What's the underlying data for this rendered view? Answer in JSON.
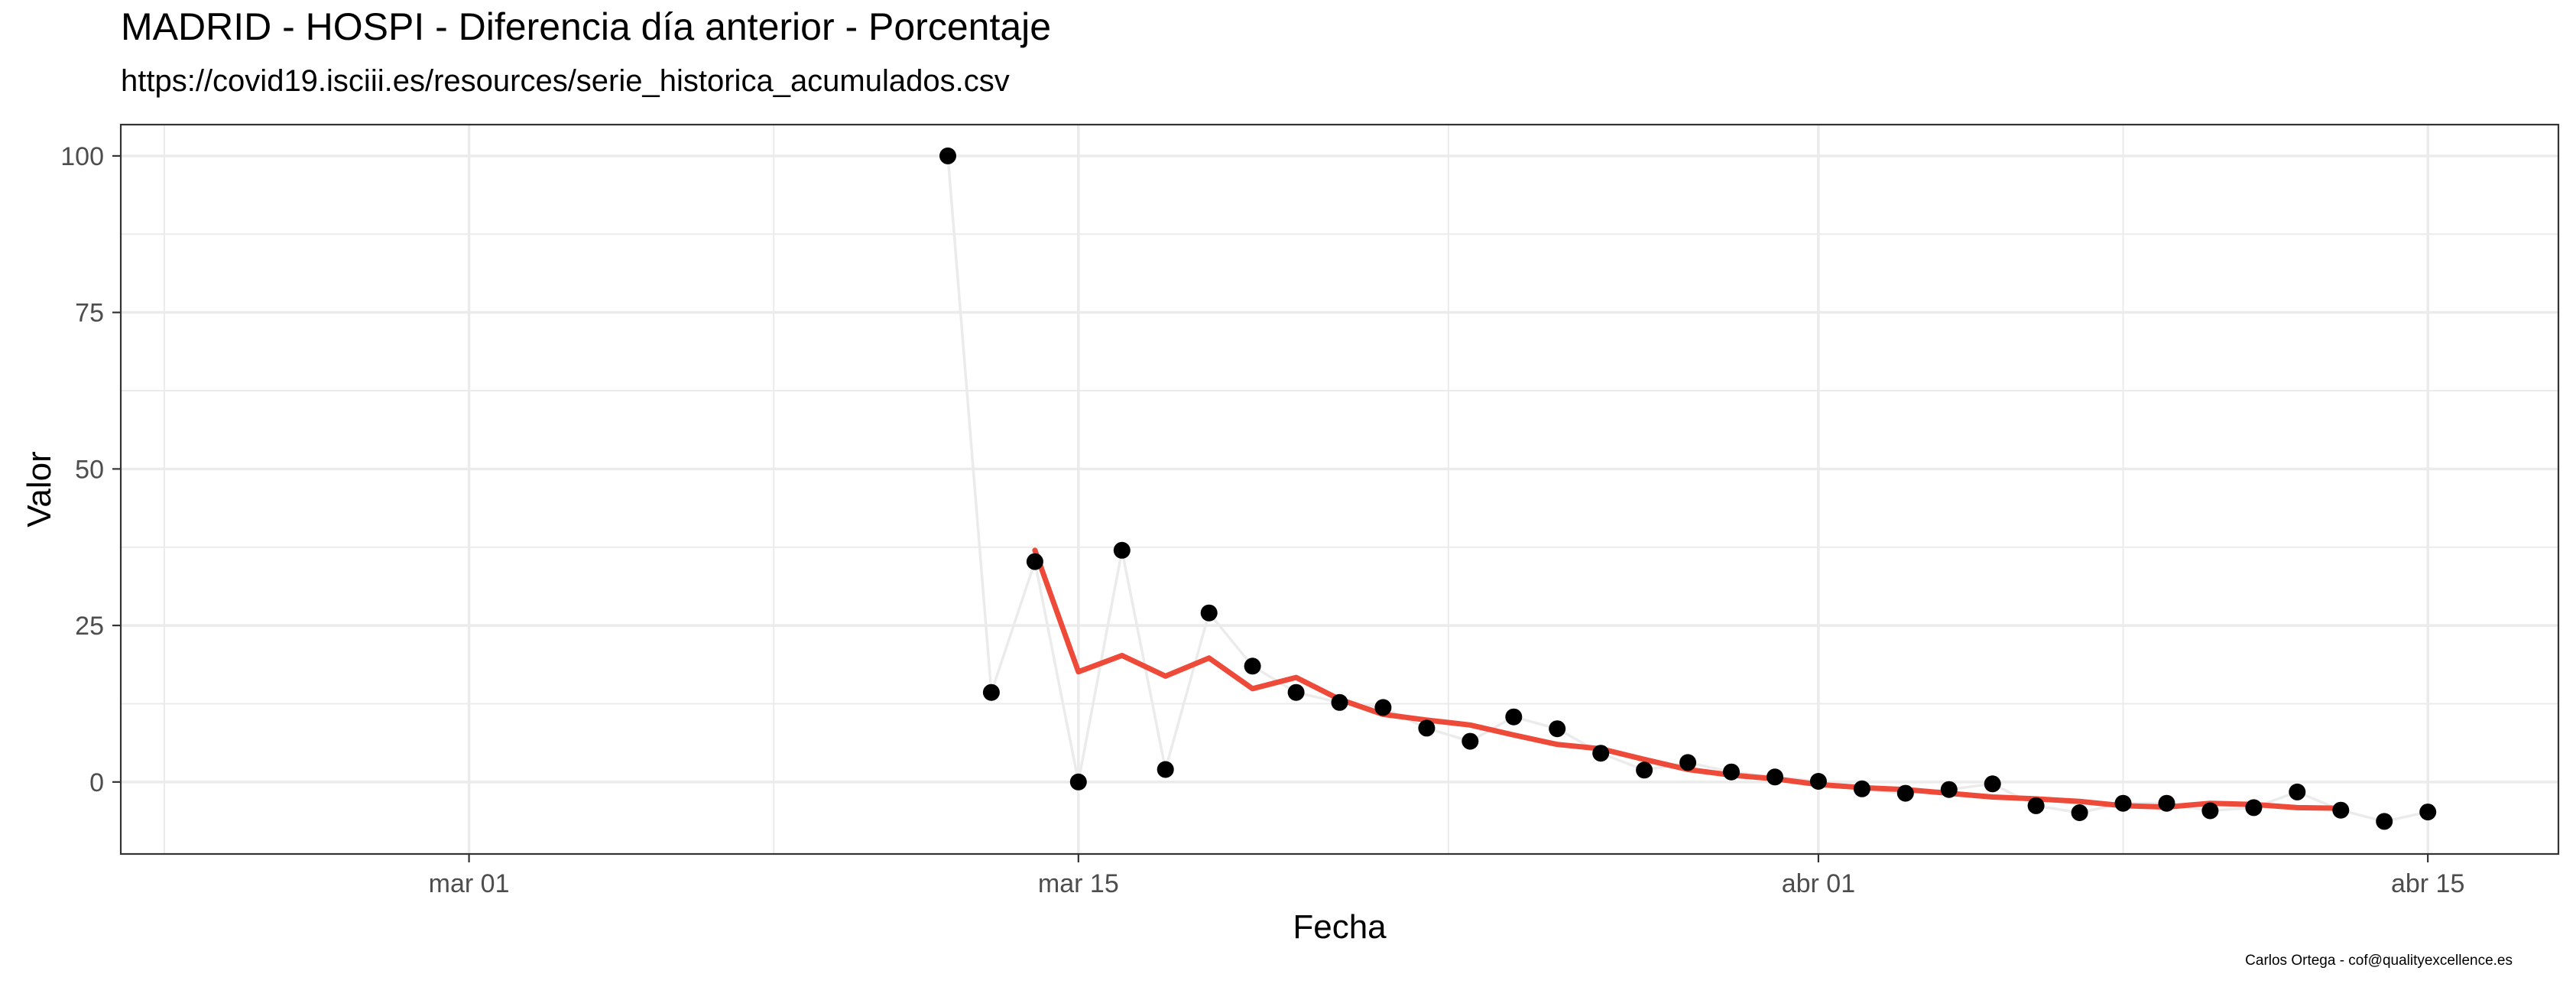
{
  "chart_data": {
    "type": "line",
    "title": "MADRID - HOSPI - Diferencia día anterior - Porcentaje",
    "subtitle": "https://covid19.isciii.es/resources/serie_historica_acumulados.csv",
    "caption": "Carlos Ortega - cof@qualityexcellence.es",
    "xlabel": "Fecha",
    "ylabel": "Valor",
    "x_axis": {
      "type": "date",
      "range": [
        "2020-02-22",
        "2020-04-18"
      ],
      "ticks": [
        {
          "date": "2020-03-01",
          "label": "mar 01"
        },
        {
          "date": "2020-03-15",
          "label": "mar 15"
        },
        {
          "date": "2020-04-01",
          "label": "abr 01"
        },
        {
          "date": "2020-04-15",
          "label": "abr 15"
        }
      ]
    },
    "y_axis": {
      "range": [
        -11.5,
        105
      ],
      "ticks": [
        0,
        25,
        50,
        75,
        100
      ]
    },
    "grid": true,
    "legend": "none",
    "series": [
      {
        "style": "points-with-light-line",
        "color": "#000000",
        "line_color": "#ebebeb",
        "points": [
          [
            "2020-03-12",
            100
          ],
          [
            "2020-03-13",
            14.3
          ],
          [
            "2020-03-14",
            35.2
          ],
          [
            "2020-03-15",
            0
          ],
          [
            "2020-03-16",
            37
          ],
          [
            "2020-03-17",
            2
          ],
          [
            "2020-03-18",
            27
          ],
          [
            "2020-03-19",
            18.5
          ],
          [
            "2020-03-20",
            14.3
          ],
          [
            "2020-03-21",
            12.7
          ],
          [
            "2020-03-22",
            11.9
          ],
          [
            "2020-03-23",
            8.6
          ],
          [
            "2020-03-24",
            6.5
          ],
          [
            "2020-03-25",
            10.4
          ],
          [
            "2020-03-26",
            8.5
          ],
          [
            "2020-03-27",
            4.6
          ],
          [
            "2020-03-28",
            1.9
          ],
          [
            "2020-03-29",
            3.1
          ],
          [
            "2020-03-30",
            1.6
          ],
          [
            "2020-03-31",
            0.8
          ],
          [
            "2020-04-01",
            0.1
          ],
          [
            "2020-04-02",
            -1.1
          ],
          [
            "2020-04-03",
            -1.8
          ],
          [
            "2020-04-04",
            -1.2
          ],
          [
            "2020-04-05",
            -0.3
          ],
          [
            "2020-04-06",
            -3.8
          ],
          [
            "2020-04-07",
            -4.9
          ],
          [
            "2020-04-08",
            -3.4
          ],
          [
            "2020-04-09",
            -3.4
          ],
          [
            "2020-04-10",
            -4.6
          ],
          [
            "2020-04-11",
            -4.1
          ],
          [
            "2020-04-12",
            -1.6
          ],
          [
            "2020-04-13",
            -4.5
          ],
          [
            "2020-04-14",
            -6.3
          ],
          [
            "2020-04-15",
            -4.8
          ]
        ]
      },
      {
        "style": "line",
        "color": "#ee4a3a",
        "points": [
          [
            "2020-03-14",
            37
          ],
          [
            "2020-03-15",
            17.6
          ],
          [
            "2020-03-16",
            20.2
          ],
          [
            "2020-03-17",
            16.9
          ],
          [
            "2020-03-18",
            19.8
          ],
          [
            "2020-03-19",
            14.9
          ],
          [
            "2020-03-20",
            16.7
          ],
          [
            "2020-03-21",
            13.2
          ],
          [
            "2020-03-22",
            10.8
          ],
          [
            "2020-03-23",
            9.9
          ],
          [
            "2020-03-24",
            9.1
          ],
          [
            "2020-03-25",
            7.5
          ],
          [
            "2020-03-26",
            6
          ],
          [
            "2020-03-27",
            5.3
          ],
          [
            "2020-03-28",
            3.6
          ],
          [
            "2020-03-29",
            2
          ],
          [
            "2020-03-30",
            1.1
          ],
          [
            "2020-03-31",
            0.5
          ],
          [
            "2020-04-01",
            -0.4
          ],
          [
            "2020-04-02",
            -0.9
          ],
          [
            "2020-04-03",
            -1.2
          ],
          [
            "2020-04-04",
            -1.8
          ],
          [
            "2020-04-05",
            -2.4
          ],
          [
            "2020-04-06",
            -2.7
          ],
          [
            "2020-04-07",
            -3.1
          ],
          [
            "2020-04-08",
            -3.8
          ],
          [
            "2020-04-09",
            -4
          ],
          [
            "2020-04-10",
            -3.4
          ],
          [
            "2020-04-11",
            -3.6
          ],
          [
            "2020-04-12",
            -4.1
          ],
          [
            "2020-04-13",
            -4.2
          ]
        ]
      }
    ]
  }
}
